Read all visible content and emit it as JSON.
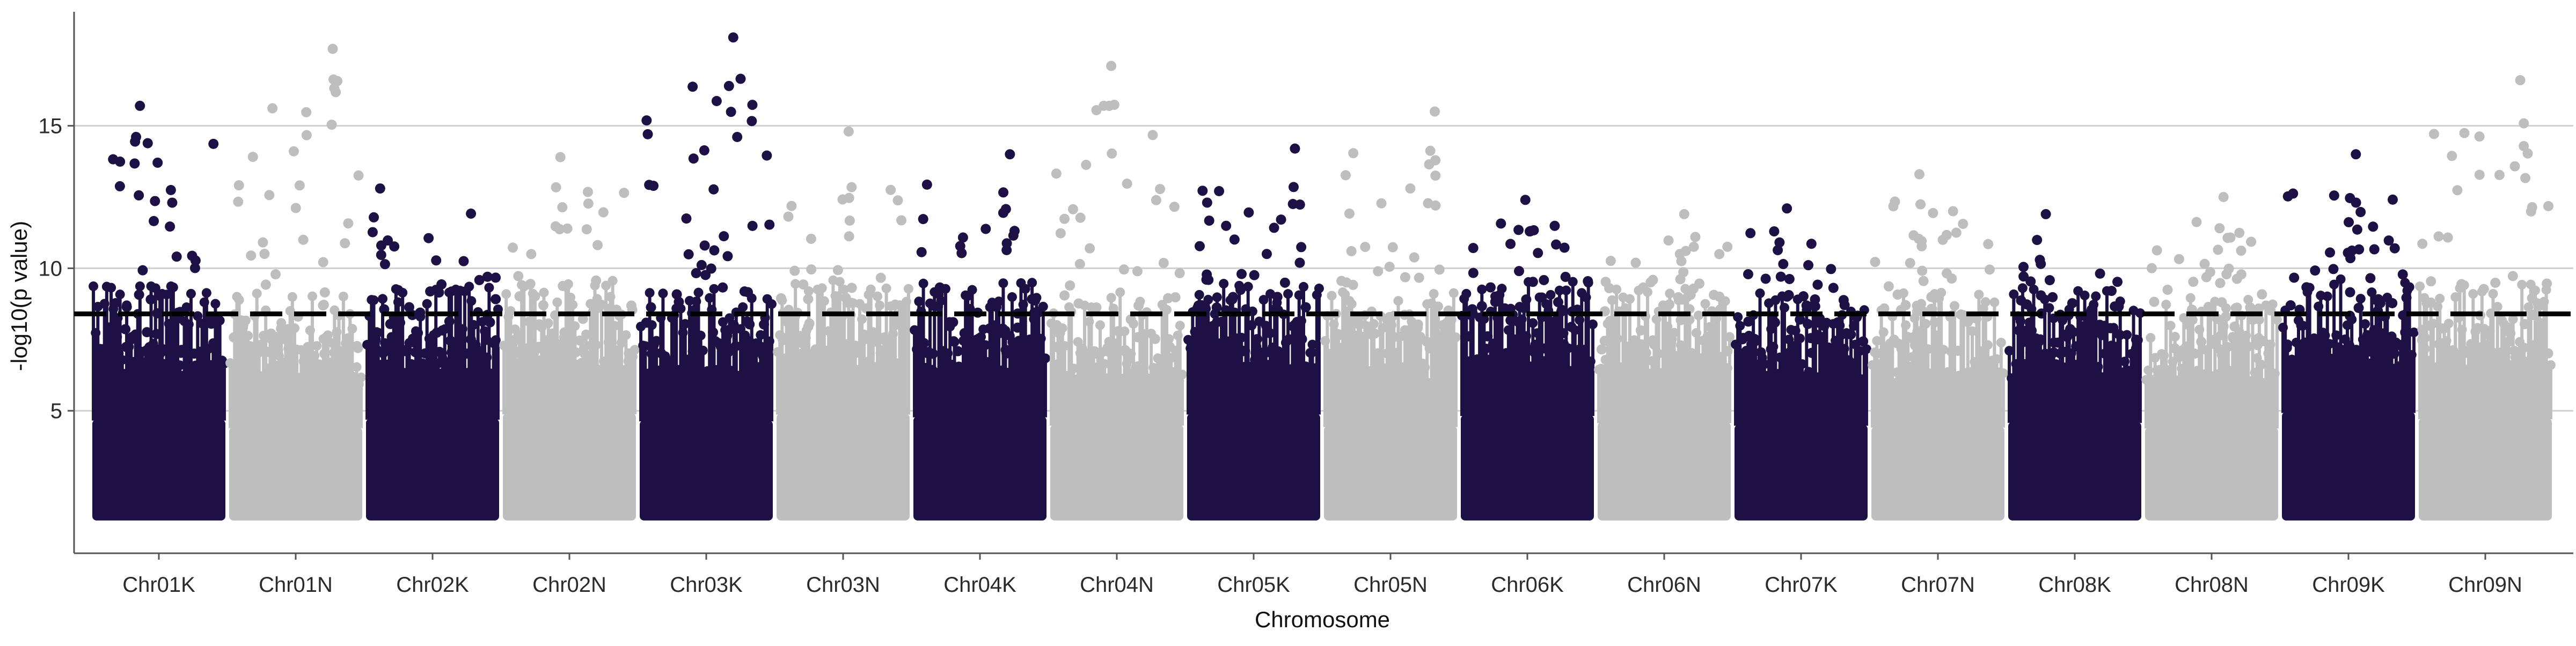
{
  "chart_data": {
    "type": "scatter",
    "subtype": "manhattan",
    "title": "",
    "xlabel": "Chromosome",
    "ylabel": "-log10(p value)",
    "ylim": [
      0,
      19
    ],
    "yticks": [
      5,
      10,
      15
    ],
    "grid": "horizontal major lines at 5, 10, 15",
    "significance_threshold": 8.4,
    "threshold_style": "dashed black line",
    "colors": {
      "odd": "#1d1044",
      "even": "#bebebe",
      "threshold": "#000000",
      "grid": "#d0d0d0"
    },
    "categories": [
      "Chr01K",
      "Chr01N",
      "Chr02K",
      "Chr02N",
      "Chr03K",
      "Chr03N",
      "Chr04K",
      "Chr04N",
      "Chr05K",
      "Chr05N",
      "Chr06K",
      "Chr06N",
      "Chr07K",
      "Chr07N",
      "Chr08K",
      "Chr08N",
      "Chr09K",
      "Chr09N"
    ],
    "top_signals": [
      {
        "chromosome": "Chr01K",
        "max_neg_log10_p": 15.7
      },
      {
        "chromosome": "Chr01N",
        "max_neg_log10_p": 17.7
      },
      {
        "chromosome": "Chr02K",
        "max_neg_log10_p": 12.8
      },
      {
        "chromosome": "Chr02N",
        "max_neg_log10_p": 13.9
      },
      {
        "chromosome": "Chr03K",
        "max_neg_log10_p": 18.1
      },
      {
        "chromosome": "Chr03N",
        "max_neg_log10_p": 14.8
      },
      {
        "chromosome": "Chr04K",
        "max_neg_log10_p": 14.0
      },
      {
        "chromosome": "Chr04N",
        "max_neg_log10_p": 17.1
      },
      {
        "chromosome": "Chr05K",
        "max_neg_log10_p": 14.2
      },
      {
        "chromosome": "Chr05N",
        "max_neg_log10_p": 15.5
      },
      {
        "chromosome": "Chr06K",
        "max_neg_log10_p": 12.4
      },
      {
        "chromosome": "Chr06N",
        "max_neg_log10_p": 11.9
      },
      {
        "chromosome": "Chr07K",
        "max_neg_log10_p": 12.1
      },
      {
        "chromosome": "Chr07N",
        "max_neg_log10_p": 13.3
      },
      {
        "chromosome": "Chr08K",
        "max_neg_log10_p": 11.9
      },
      {
        "chromosome": "Chr08N",
        "max_neg_log10_p": 12.5
      },
      {
        "chromosome": "Chr09K",
        "max_neg_log10_p": 14.0
      },
      {
        "chromosome": "Chr09N",
        "max_neg_log10_p": 16.6
      }
    ]
  }
}
